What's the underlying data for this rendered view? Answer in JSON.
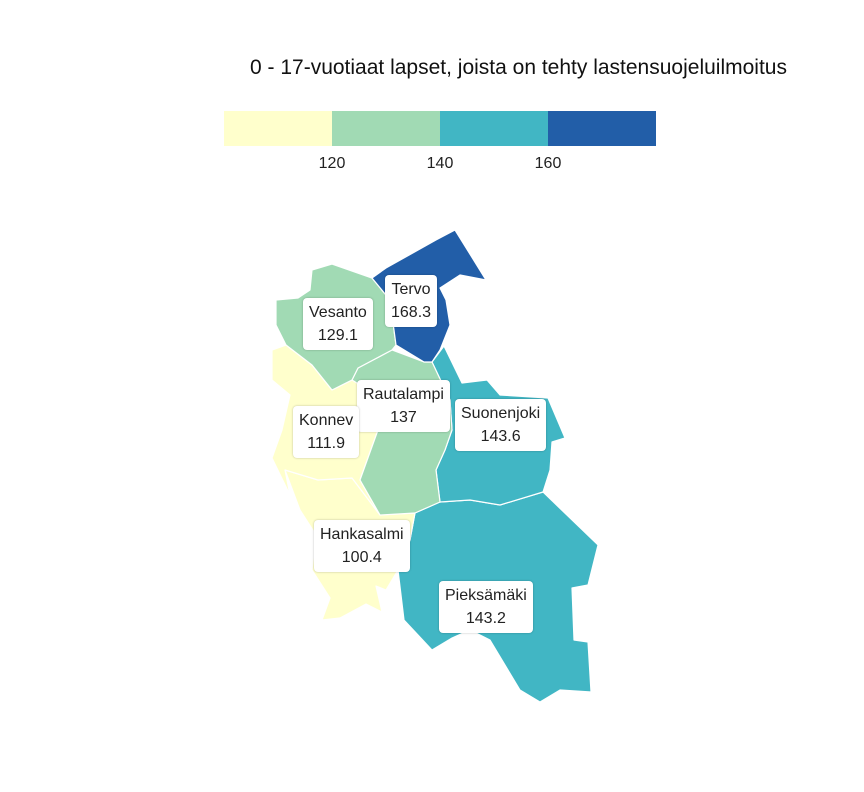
{
  "title": "0 - 17-vuotiaat lapset, joista on tehty lastensuojeluilmoitus",
  "legend": {
    "colors": [
      "#ffffcc",
      "#a1dab4",
      "#41b6c4",
      "#225ea8"
    ],
    "ticks": [
      "120",
      "140",
      "160"
    ]
  },
  "regions": [
    {
      "name": "Tervo",
      "value": "168.3",
      "color": "#225ea8"
    },
    {
      "name": "Vesanto",
      "value": "129.1",
      "color": "#a1dab4"
    },
    {
      "name": "Rautalampi",
      "value": "137",
      "color": "#a1dab4"
    },
    {
      "name": "Konnev",
      "value": "111.9",
      "color": "#ffffcc"
    },
    {
      "name": "Suonenjoki",
      "value": "143.6",
      "color": "#41b6c4"
    },
    {
      "name": "Hankasalmi",
      "value": "100.4",
      "color": "#ffffcc"
    },
    {
      "name": "Pieksämäki",
      "value": "143.2",
      "color": "#41b6c4"
    }
  ]
}
